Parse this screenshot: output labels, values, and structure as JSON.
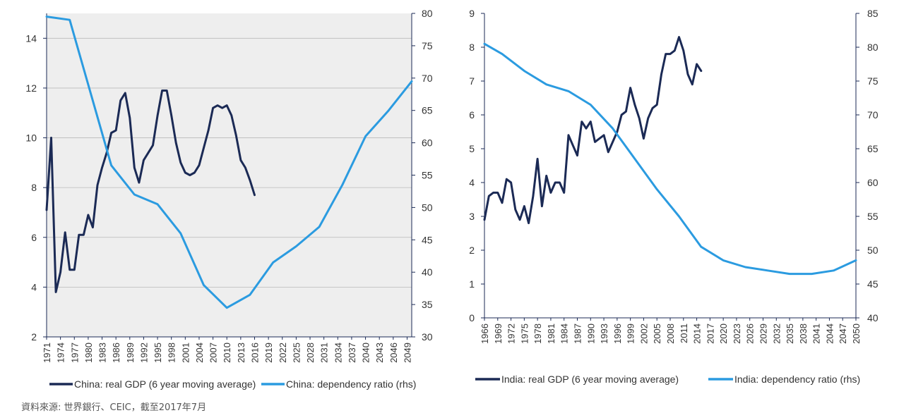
{
  "source_note": "資料來源: 世界銀行、CEIC，截至2017年7月",
  "chart_data": [
    {
      "type": "line",
      "panel": "left",
      "title": "",
      "xlabel": "",
      "ylabel": "",
      "x_tick_labels": [
        "1971",
        "1974",
        "1977",
        "1980",
        "1983",
        "1986",
        "1989",
        "1992",
        "1995",
        "1998",
        "2001",
        "2004",
        "2007",
        "2010",
        "2013",
        "2016",
        "2019",
        "2022",
        "2025",
        "2028",
        "2031",
        "2034",
        "2037",
        "2040",
        "2043",
        "2046",
        "2049"
      ],
      "xlim": [
        1971,
        2050
      ],
      "y_left": {
        "lim": [
          2,
          15
        ],
        "ticks": [
          2,
          4,
          6,
          8,
          10,
          12,
          14
        ]
      },
      "y_right": {
        "lim": [
          30,
          80
        ],
        "ticks": [
          30,
          35,
          40,
          45,
          50,
          55,
          60,
          65,
          70,
          75,
          80
        ]
      },
      "grid": true,
      "legend_position": "bottom",
      "series": [
        {
          "name": "China: real GDP (6 year moving average)",
          "axis": "left",
          "color": "#1b2a55",
          "x": [
            1971,
            1972,
            1973,
            1974,
            1975,
            1976,
            1977,
            1978,
            1979,
            1980,
            1981,
            1982,
            1983,
            1984,
            1985,
            1986,
            1987,
            1988,
            1989,
            1990,
            1991,
            1992,
            1993,
            1994,
            1995,
            1996,
            1997,
            1998,
            1999,
            2000,
            2001,
            2002,
            2003,
            2004,
            2005,
            2006,
            2007,
            2008,
            2009,
            2010,
            2011,
            2012,
            2013,
            2014,
            2015,
            2016
          ],
          "y": [
            7.1,
            10.0,
            3.8,
            4.6,
            6.2,
            4.7,
            4.7,
            6.1,
            6.1,
            6.9,
            6.4,
            8.1,
            8.8,
            9.4,
            10.2,
            10.3,
            11.5,
            11.8,
            10.8,
            8.8,
            8.2,
            9.1,
            9.4,
            9.7,
            10.9,
            11.9,
            11.9,
            10.9,
            9.8,
            9.0,
            8.6,
            8.5,
            8.6,
            8.9,
            9.6,
            10.3,
            11.2,
            11.3,
            11.2,
            11.3,
            10.9,
            10.1,
            9.1,
            8.8,
            8.3,
            7.7
          ]
        },
        {
          "name": "China: dependency ratio (rhs)",
          "axis": "right",
          "color": "#2b9be0",
          "x": [
            1971,
            1976,
            1980,
            1985,
            1990,
            1995,
            2000,
            2005,
            2010,
            2015,
            2020,
            2025,
            2030,
            2035,
            2040,
            2045,
            2050
          ],
          "y": [
            79.5,
            79,
            69,
            56.5,
            52,
            50.5,
            46,
            38,
            34.5,
            36.5,
            41.5,
            44,
            47,
            53.5,
            61,
            65,
            69.5
          ]
        }
      ]
    },
    {
      "type": "line",
      "panel": "right",
      "title": "",
      "xlabel": "",
      "ylabel": "",
      "x_tick_labels": [
        "1966",
        "1969",
        "1972",
        "1975",
        "1978",
        "1981",
        "1984",
        "1987",
        "1990",
        "1993",
        "1996",
        "1999",
        "2002",
        "2005",
        "2008",
        "2011",
        "2014",
        "2017",
        "2020",
        "2023",
        "2026",
        "2029",
        "2032",
        "2035",
        "2038",
        "2041",
        "2044",
        "2047",
        "2050"
      ],
      "xlim": [
        1966,
        2050
      ],
      "y_left": {
        "lim": [
          0,
          9
        ],
        "ticks": [
          0,
          1,
          2,
          3,
          4,
          5,
          6,
          7,
          8,
          9
        ]
      },
      "y_right": {
        "lim": [
          40,
          85
        ],
        "ticks": [
          40,
          45,
          50,
          55,
          60,
          65,
          70,
          75,
          80,
          85
        ]
      },
      "grid": false,
      "legend_position": "bottom",
      "series": [
        {
          "name": "India: real GDP (6 year moving average)",
          "axis": "left",
          "color": "#1b2a55",
          "x": [
            1966,
            1967,
            1968,
            1969,
            1970,
            1971,
            1972,
            1973,
            1974,
            1975,
            1976,
            1977,
            1978,
            1979,
            1980,
            1981,
            1982,
            1983,
            1984,
            1985,
            1986,
            1987,
            1988,
            1989,
            1990,
            1991,
            1992,
            1993,
            1994,
            1995,
            1996,
            1997,
            1998,
            1999,
            2000,
            2001,
            2002,
            2003,
            2004,
            2005,
            2006,
            2007,
            2008,
            2009,
            2010,
            2011,
            2012,
            2013,
            2014,
            2015
          ],
          "y": [
            2.9,
            3.6,
            3.7,
            3.7,
            3.4,
            4.1,
            4.0,
            3.2,
            2.9,
            3.3,
            2.8,
            3.6,
            4.7,
            3.3,
            4.2,
            3.7,
            4.0,
            4.0,
            3.7,
            5.4,
            5.1,
            4.8,
            5.8,
            5.6,
            5.8,
            5.2,
            5.3,
            5.4,
            4.9,
            5.2,
            5.5,
            6.0,
            6.1,
            6.8,
            6.3,
            5.9,
            5.3,
            5.9,
            6.2,
            6.3,
            7.2,
            7.8,
            7.8,
            7.9,
            8.3,
            7.9,
            7.2,
            6.9,
            7.5,
            7.3
          ]
        },
        {
          "name": "India: dependency ratio (rhs)",
          "axis": "right",
          "color": "#2b9be0",
          "x": [
            1966,
            1970,
            1975,
            1980,
            1985,
            1990,
            1995,
            2000,
            2005,
            2010,
            2015,
            2020,
            2025,
            2030,
            2035,
            2040,
            2045,
            2050
          ],
          "y": [
            80.5,
            79,
            76.5,
            74.5,
            73.5,
            71.5,
            68,
            63.5,
            59,
            55,
            50.5,
            48.5,
            47.5,
            47,
            46.5,
            46.5,
            47,
            48.5
          ]
        }
      ]
    }
  ]
}
